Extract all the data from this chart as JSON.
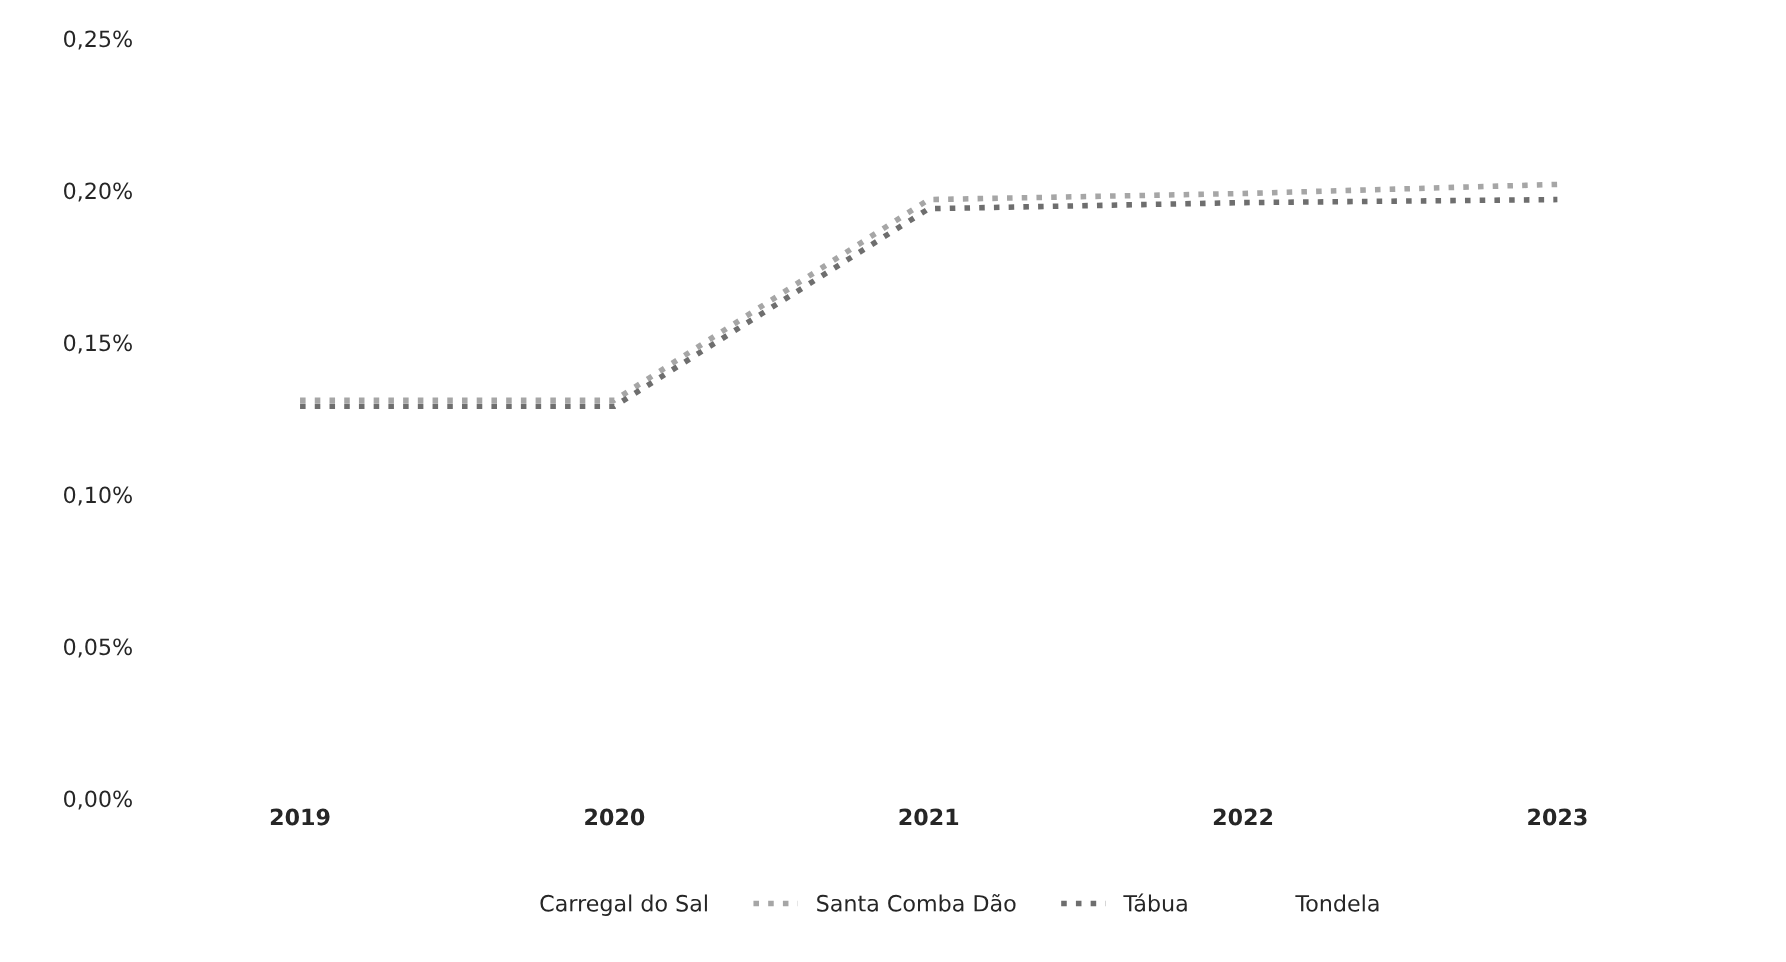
{
  "chart_data": {
    "type": "line",
    "categories": [
      "2019",
      "2020",
      "2021",
      "2022",
      "2023"
    ],
    "series": [
      {
        "name": "Carregal do Sal",
        "values": [
          null,
          null,
          null,
          null,
          null
        ]
      },
      {
        "name": "Santa Comba Dão",
        "color": "#a6a6a6",
        "values": [
          0.131,
          0.131,
          0.197,
          0.199,
          0.202
        ]
      },
      {
        "name": "Tábua",
        "color": "#6e6e6e",
        "values": [
          0.129,
          0.129,
          0.194,
          0.196,
          0.197
        ]
      },
      {
        "name": "Tondela",
        "values": [
          null,
          null,
          null,
          null,
          null
        ]
      }
    ],
    "ylim": [
      0,
      0.25
    ],
    "yticks": [
      {
        "value": 0,
        "label": "0,00%"
      },
      {
        "value": 0.05,
        "label": "0,05%"
      },
      {
        "value": 0.1,
        "label": "0,10%"
      },
      {
        "value": 0.15,
        "label": "0,15%"
      },
      {
        "value": 0.2,
        "label": "0,20%"
      },
      {
        "value": 0.25,
        "label": "0,25%"
      }
    ],
    "grid": false,
    "legend": "bottom",
    "line_style": "dotted",
    "marker": "none"
  }
}
